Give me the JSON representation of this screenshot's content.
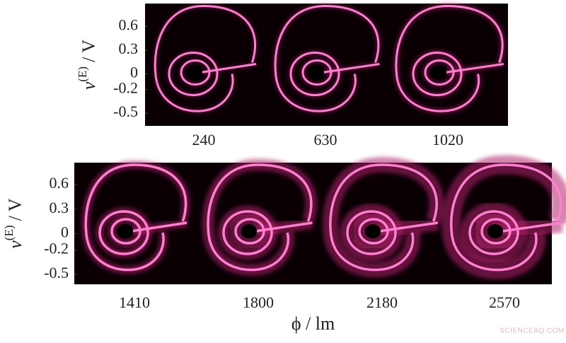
{
  "chart_data": [
    {
      "type": "image",
      "categories": [
        "240",
        "630",
        "1020"
      ],
      "ylabel": {
        "base": "v",
        "superscript": "(E)",
        "unit": "/ V"
      },
      "ylim": [
        -0.66,
        0.89
      ],
      "yticks": [
        0.6,
        0.3,
        0,
        -0.2,
        -0.5
      ]
    },
    {
      "type": "image",
      "categories": [
        "1410",
        "1800",
        "2180",
        "2570"
      ],
      "ylabel": {
        "base": "v",
        "superscript": "(E)",
        "unit": "/ V"
      },
      "ylim": [
        -0.62,
        0.87
      ],
      "yticks": [
        0.6,
        0.3,
        0,
        -0.2,
        -0.5
      ],
      "xlabel": "ϕ / lm"
    }
  ],
  "watermark": "SCIENCEAQ.COM"
}
